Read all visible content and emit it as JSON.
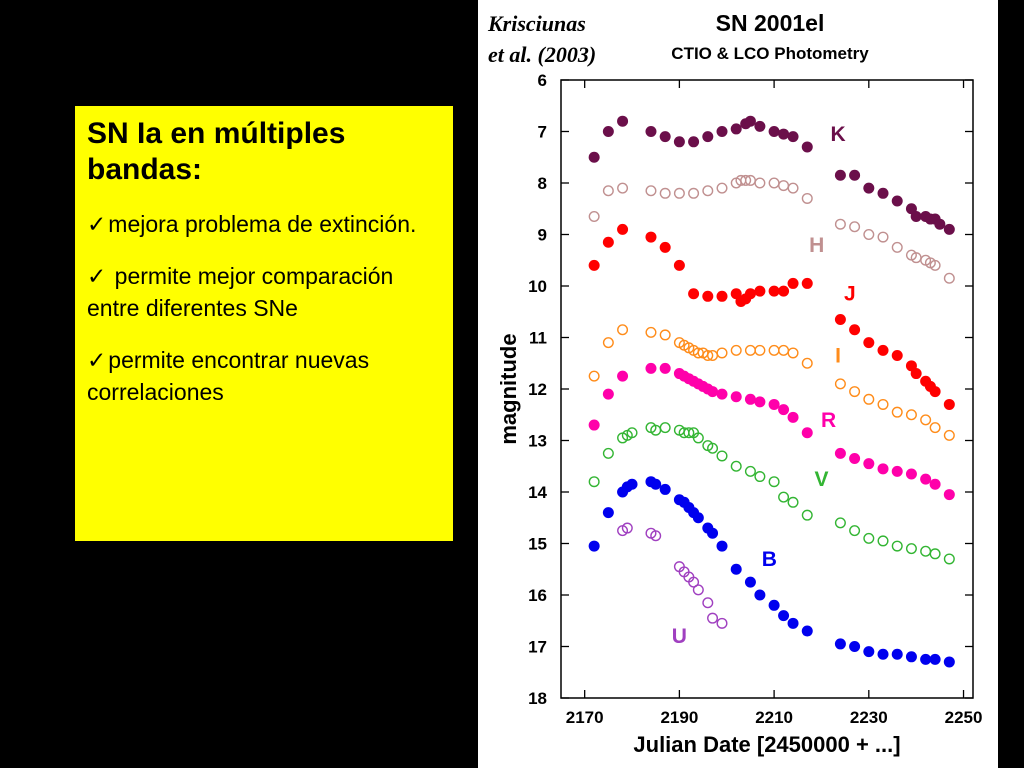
{
  "slide": {
    "heading": "SN Ia en múltiples bandas:",
    "bullets": [
      {
        "check": "✓",
        "text": "mejora problema de extinción."
      },
      {
        "check": "✓",
        "text": " permite mejor comparación entre diferentes SNe"
      },
      {
        "check": "✓",
        "text": "permite encontrar nuevas correlaciones"
      }
    ],
    "textbox_color": "#ffff00",
    "background_color": "#000000"
  },
  "chart_data": {
    "type": "scatter",
    "citation_line1": "Krisciunas",
    "citation_line2": "et al. (2003)",
    "title": "SN 2001el",
    "subtitle": "CTIO & LCO Photometry",
    "xlabel": "Julian Date [2450000 + ...]",
    "ylabel": "magnitude",
    "xlim": [
      2165,
      2252
    ],
    "ylim": [
      18,
      6
    ],
    "y_inverted": true,
    "xticks": [
      2170,
      2190,
      2210,
      2230,
      2250
    ],
    "yticks": [
      6,
      7,
      8,
      9,
      10,
      11,
      12,
      13,
      14,
      15,
      16,
      17,
      18
    ],
    "grid": false,
    "series": [
      {
        "name": "K",
        "color": "#6b0f4a",
        "filled": true,
        "x": [
          2172,
          2175,
          2178,
          2184,
          2187,
          2190,
          2193,
          2196,
          2199,
          2202,
          2204,
          2205,
          2207,
          2210,
          2212,
          2214,
          2217,
          2224,
          2227,
          2230,
          2233,
          2236,
          2239,
          2240,
          2242,
          2243,
          2244,
          2245,
          2247
        ],
        "y": [
          7.5,
          7.0,
          6.8,
          7.0,
          7.1,
          7.2,
          7.2,
          7.1,
          7.0,
          6.95,
          6.85,
          6.8,
          6.9,
          7.0,
          7.05,
          7.1,
          7.3,
          7.85,
          7.85,
          8.1,
          8.2,
          8.35,
          8.5,
          8.65,
          8.65,
          8.7,
          8.7,
          8.8,
          8.9
        ]
      },
      {
        "name": "H",
        "color": "#c09090",
        "filled": false,
        "x": [
          2172,
          2175,
          2178,
          2184,
          2187,
          2190,
          2193,
          2196,
          2199,
          2202,
          2203,
          2204,
          2205,
          2207,
          2210,
          2212,
          2214,
          2217,
          2224,
          2227,
          2230,
          2233,
          2236,
          2239,
          2240,
          2242,
          2243,
          2244,
          2247
        ],
        "y": [
          8.65,
          8.15,
          8.1,
          8.15,
          8.2,
          8.2,
          8.2,
          8.15,
          8.1,
          8.0,
          7.95,
          7.95,
          7.95,
          8.0,
          8.0,
          8.05,
          8.1,
          8.3,
          8.8,
          8.85,
          9.0,
          9.05,
          9.25,
          9.4,
          9.45,
          9.5,
          9.55,
          9.6,
          9.85
        ]
      },
      {
        "name": "J",
        "color": "#ff0000",
        "filled": true,
        "x": [
          2172,
          2175,
          2178,
          2184,
          2187,
          2190,
          2193,
          2196,
          2199,
          2202,
          2203,
          2204,
          2205,
          2207,
          2210,
          2212,
          2214,
          2217,
          2224,
          2227,
          2230,
          2233,
          2236,
          2239,
          2240,
          2242,
          2243,
          2244,
          2247
        ],
        "y": [
          9.6,
          9.15,
          8.9,
          9.05,
          9.25,
          9.6,
          10.15,
          10.2,
          10.2,
          10.15,
          10.3,
          10.25,
          10.15,
          10.1,
          10.1,
          10.1,
          9.95,
          9.95,
          10.65,
          10.85,
          11.1,
          11.25,
          11.35,
          11.55,
          11.7,
          11.85,
          11.95,
          12.05,
          12.3
        ]
      },
      {
        "name": "I",
        "color": "#ff8c1a",
        "filled": false,
        "x": [
          2172,
          2175,
          2178,
          2184,
          2187,
          2190,
          2191,
          2192,
          2193,
          2194,
          2195,
          2196,
          2197,
          2199,
          2202,
          2205,
          2207,
          2210,
          2212,
          2214,
          2217,
          2224,
          2227,
          2230,
          2233,
          2236,
          2239,
          2242,
          2244,
          2247
        ],
        "y": [
          11.75,
          11.1,
          10.85,
          10.9,
          10.95,
          11.1,
          11.15,
          11.2,
          11.25,
          11.3,
          11.3,
          11.35,
          11.35,
          11.3,
          11.25,
          11.25,
          11.25,
          11.25,
          11.25,
          11.3,
          11.5,
          11.9,
          12.05,
          12.2,
          12.3,
          12.45,
          12.5,
          12.6,
          12.75,
          12.9
        ]
      },
      {
        "name": "R",
        "color": "#ff00aa",
        "filled": true,
        "x": [
          2172,
          2175,
          2178,
          2184,
          2187,
          2190,
          2191,
          2192,
          2193,
          2194,
          2195,
          2196,
          2197,
          2199,
          2202,
          2205,
          2207,
          2210,
          2212,
          2214,
          2217,
          2224,
          2227,
          2230,
          2233,
          2236,
          2239,
          2242,
          2244,
          2247
        ],
        "y": [
          12.7,
          12.1,
          11.75,
          11.6,
          11.6,
          11.7,
          11.75,
          11.8,
          11.85,
          11.9,
          11.95,
          12.0,
          12.05,
          12.1,
          12.15,
          12.2,
          12.25,
          12.3,
          12.4,
          12.55,
          12.85,
          13.25,
          13.35,
          13.45,
          13.55,
          13.6,
          13.65,
          13.75,
          13.85,
          14.05
        ]
      },
      {
        "name": "V",
        "color": "#33b533",
        "filled": false,
        "x": [
          2172,
          2175,
          2178,
          2179,
          2180,
          2184,
          2185,
          2187,
          2190,
          2191,
          2192,
          2193,
          2194,
          2196,
          2197,
          2199,
          2202,
          2205,
          2207,
          2210,
          2212,
          2214,
          2217,
          2224,
          2227,
          2230,
          2233,
          2236,
          2239,
          2242,
          2244,
          2247
        ],
        "y": [
          13.8,
          13.25,
          12.95,
          12.9,
          12.85,
          12.75,
          12.8,
          12.75,
          12.8,
          12.85,
          12.85,
          12.85,
          12.95,
          13.1,
          13.15,
          13.3,
          13.5,
          13.6,
          13.7,
          13.8,
          14.1,
          14.2,
          14.45,
          14.6,
          14.75,
          14.9,
          14.95,
          15.05,
          15.1,
          15.15,
          15.2,
          15.3
        ]
      },
      {
        "name": "B",
        "color": "#0000ee",
        "filled": true,
        "x": [
          2172,
          2175,
          2178,
          2179,
          2180,
          2184,
          2185,
          2187,
          2190,
          2191,
          2192,
          2193,
          2194,
          2196,
          2197,
          2199,
          2202,
          2205,
          2207,
          2210,
          2212,
          2214,
          2217,
          2224,
          2227,
          2230,
          2233,
          2236,
          2239,
          2242,
          2244,
          2247
        ],
        "y": [
          15.05,
          14.4,
          14.0,
          13.9,
          13.85,
          13.8,
          13.85,
          13.95,
          14.15,
          14.2,
          14.3,
          14.4,
          14.5,
          14.7,
          14.8,
          15.05,
          15.5,
          15.75,
          16.0,
          16.2,
          16.4,
          16.55,
          16.7,
          16.95,
          17.0,
          17.1,
          17.15,
          17.15,
          17.2,
          17.25,
          17.25,
          17.3
        ]
      },
      {
        "name": "U",
        "color": "#a040c0",
        "filled": false,
        "x": [
          2178,
          2179,
          2184,
          2185,
          2190,
          2191,
          2192,
          2193,
          2194,
          2196,
          2197,
          2199
        ],
        "y": [
          14.75,
          14.7,
          14.8,
          14.85,
          15.45,
          15.55,
          15.65,
          15.75,
          15.9,
          16.15,
          16.45,
          16.55
        ]
      }
    ],
    "band_labels": [
      {
        "text": "K",
        "x": 2223.5,
        "y": 7.05
      },
      {
        "text": "H",
        "x": 2219,
        "y": 9.2
      },
      {
        "text": "J",
        "x": 2226,
        "y": 10.15
      },
      {
        "text": "I",
        "x": 2223.5,
        "y": 11.35
      },
      {
        "text": "R",
        "x": 2221.5,
        "y": 12.6
      },
      {
        "text": "V",
        "x": 2220,
        "y": 13.75
      },
      {
        "text": "B",
        "x": 2209,
        "y": 15.3
      },
      {
        "text": "U",
        "x": 2190,
        "y": 16.8
      }
    ]
  }
}
